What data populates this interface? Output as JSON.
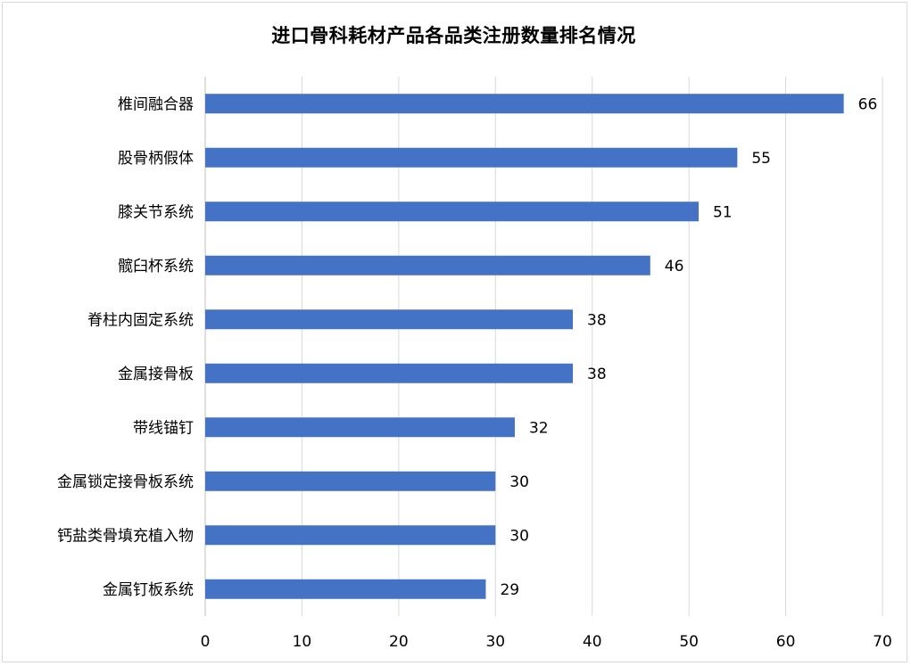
{
  "chart_data": {
    "type": "bar",
    "orientation": "horizontal",
    "title": "进口骨科耗材产品各品类注册数量排名情况",
    "categories": [
      "椎间融合器",
      "股骨柄假体",
      "膝关节系统",
      "髋臼杯系统",
      "脊柱内固定系统",
      "金属接骨板",
      "带线锚钉",
      "金属锁定接骨板系统",
      "钙盐类骨填充植入物",
      "金属钉板系统"
    ],
    "values": [
      66,
      55,
      51,
      46,
      38,
      38,
      32,
      30,
      30,
      29
    ],
    "xlim": [
      0,
      70
    ],
    "x_ticks": [
      0,
      10,
      20,
      30,
      40,
      50,
      60,
      70
    ],
    "grid": "vertical",
    "legend": "none",
    "xlabel": "",
    "ylabel": "",
    "colors": {
      "bar": "#4472c4",
      "grid": "#d9d9d9",
      "axis": "#bfbfbf"
    }
  }
}
